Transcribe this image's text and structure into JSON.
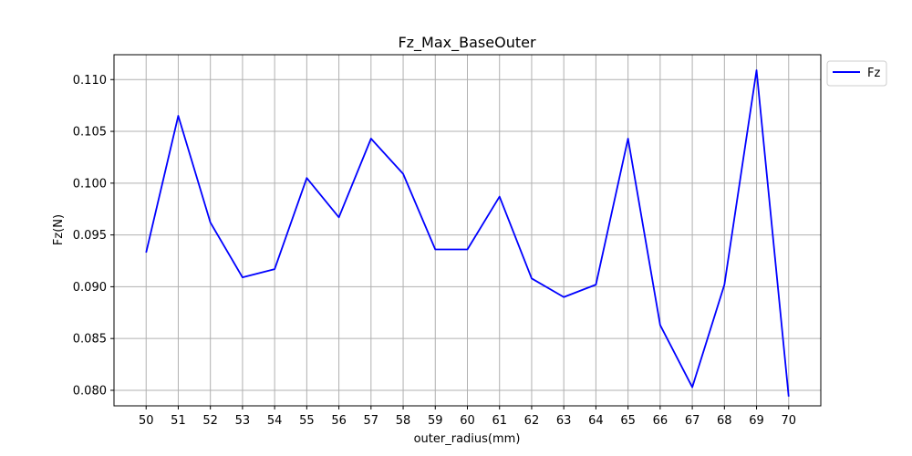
{
  "chart_data": {
    "type": "line",
    "title": "Fz_Max_BaseOuter",
    "xlabel": "outer_radius(mm)",
    "ylabel": "Fz(N)",
    "x": [
      50,
      51,
      52,
      53,
      54,
      55,
      56,
      57,
      58,
      59,
      60,
      61,
      62,
      63,
      64,
      65,
      66,
      67,
      68,
      69,
      70
    ],
    "x_tick_labels": [
      "50",
      "51",
      "52",
      "53",
      "54",
      "55",
      "56",
      "57",
      "58",
      "59",
      "60",
      "61",
      "62",
      "63",
      "64",
      "65",
      "66",
      "67",
      "68",
      "69",
      "70"
    ],
    "y_ticks": [
      0.08,
      0.085,
      0.09,
      0.095,
      0.1,
      0.105,
      0.11
    ],
    "y_tick_labels": [
      "0.080",
      "0.085",
      "0.090",
      "0.095",
      "0.100",
      "0.105",
      "0.110"
    ],
    "xlim": [
      49,
      71
    ],
    "ylim": [
      0.0785,
      0.1124
    ],
    "grid": true,
    "legend_position": "outside-top-right",
    "series": [
      {
        "name": "Fz",
        "color": "#0000ff",
        "values": [
          0.0933,
          0.1065,
          0.0962,
          0.0909,
          0.0917,
          0.1005,
          0.0967,
          0.1043,
          0.1009,
          0.0936,
          0.0936,
          0.0987,
          0.0908,
          0.089,
          0.0902,
          0.1043,
          0.0863,
          0.0803,
          0.0902,
          0.1109,
          0.0794
        ]
      }
    ]
  }
}
